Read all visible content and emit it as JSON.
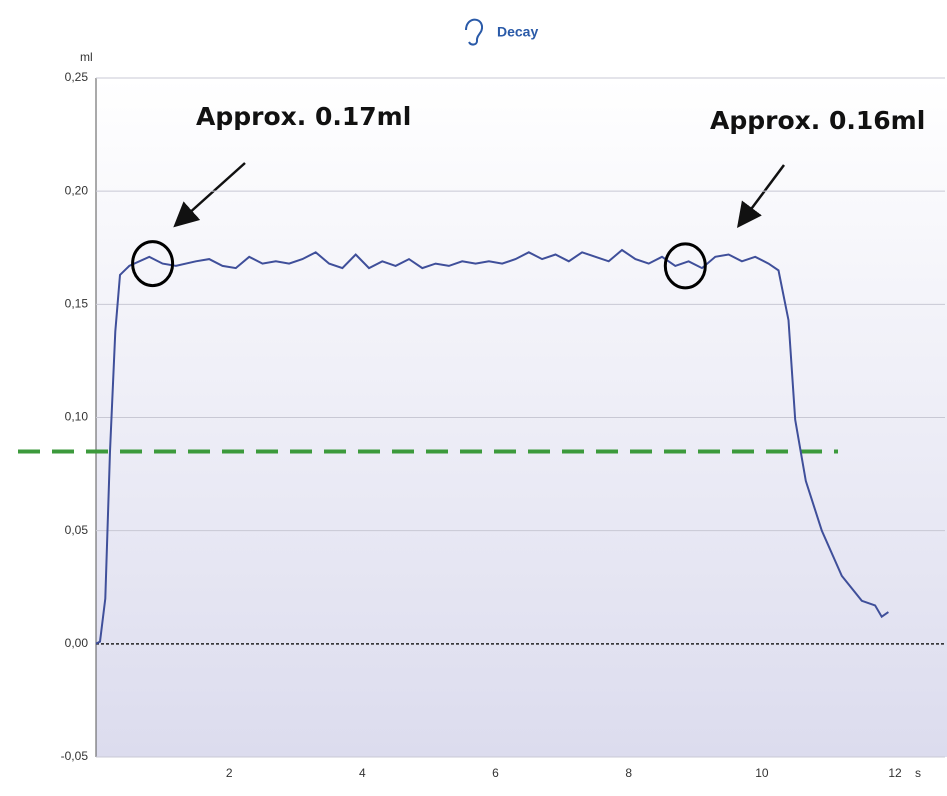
{
  "chart_data": {
    "type": "line",
    "title": "Decay",
    "ylabel": "ml",
    "xlabel": "s",
    "x": [
      0,
      0.06,
      0.14,
      0.21,
      0.29,
      0.36,
      0.5,
      0.8,
      1.0,
      1.2,
      1.5,
      1.7,
      1.9,
      2.1,
      2.3,
      2.5,
      2.7,
      2.9,
      3.1,
      3.3,
      3.5,
      3.7,
      3.9,
      4.1,
      4.3,
      4.5,
      4.7,
      4.9,
      5.1,
      5.3,
      5.5,
      5.7,
      5.9,
      6.1,
      6.3,
      6.5,
      6.7,
      6.9,
      7.1,
      7.3,
      7.5,
      7.7,
      7.9,
      8.1,
      8.3,
      8.5,
      8.7,
      8.9,
      9.1,
      9.3,
      9.5,
      9.7,
      9.9,
      10.1,
      10.25,
      10.4,
      10.5,
      10.66,
      10.9,
      11.2,
      11.5,
      11.7,
      11.8,
      11.9
    ],
    "series": [
      {
        "color": "#3f4f9a",
        "values": [
          0,
          0.001,
          0.02,
          0.085,
          0.138,
          0.163,
          0.167,
          0.171,
          0.168,
          0.167,
          0.169,
          0.17,
          0.167,
          0.166,
          0.171,
          0.168,
          0.169,
          0.168,
          0.17,
          0.173,
          0.168,
          0.166,
          0.172,
          0.166,
          0.169,
          0.167,
          0.17,
          0.166,
          0.168,
          0.167,
          0.169,
          0.168,
          0.169,
          0.168,
          0.17,
          0.173,
          0.17,
          0.172,
          0.169,
          0.173,
          0.171,
          0.169,
          0.174,
          0.17,
          0.168,
          0.171,
          0.167,
          0.169,
          0.166,
          0.171,
          0.172,
          0.169,
          0.171,
          0.168,
          0.165,
          0.143,
          0.099,
          0.072,
          0.05,
          0.03,
          0.019,
          0.017,
          0.012,
          0.014
        ]
      }
    ],
    "xlim": [
      0,
      12.75
    ],
    "ylim": [
      -0.05,
      0.25
    ],
    "xticks": [
      2,
      4,
      6,
      8,
      10,
      12
    ],
    "yticks": [
      {
        "value": -0.05,
        "label": "-0,05"
      },
      {
        "value": 0,
        "label": "0,00"
      },
      {
        "value": 0.05,
        "label": "0,05"
      },
      {
        "value": 0.1,
        "label": "0,10"
      },
      {
        "value": 0.15,
        "label": "0,15"
      },
      {
        "value": 0.2,
        "label": "0,20"
      },
      {
        "value": 0.25,
        "label": "0,25"
      }
    ],
    "grid": true,
    "reference_line": {
      "value": 0.085,
      "color": "#3c9a3c"
    },
    "annotations": [
      {
        "text": "Approx. 0.17ml",
        "x": 0.85,
        "y": 0.168
      },
      {
        "text": "Approx. 0.16ml",
        "x": 8.85,
        "y": 0.167
      }
    ]
  }
}
